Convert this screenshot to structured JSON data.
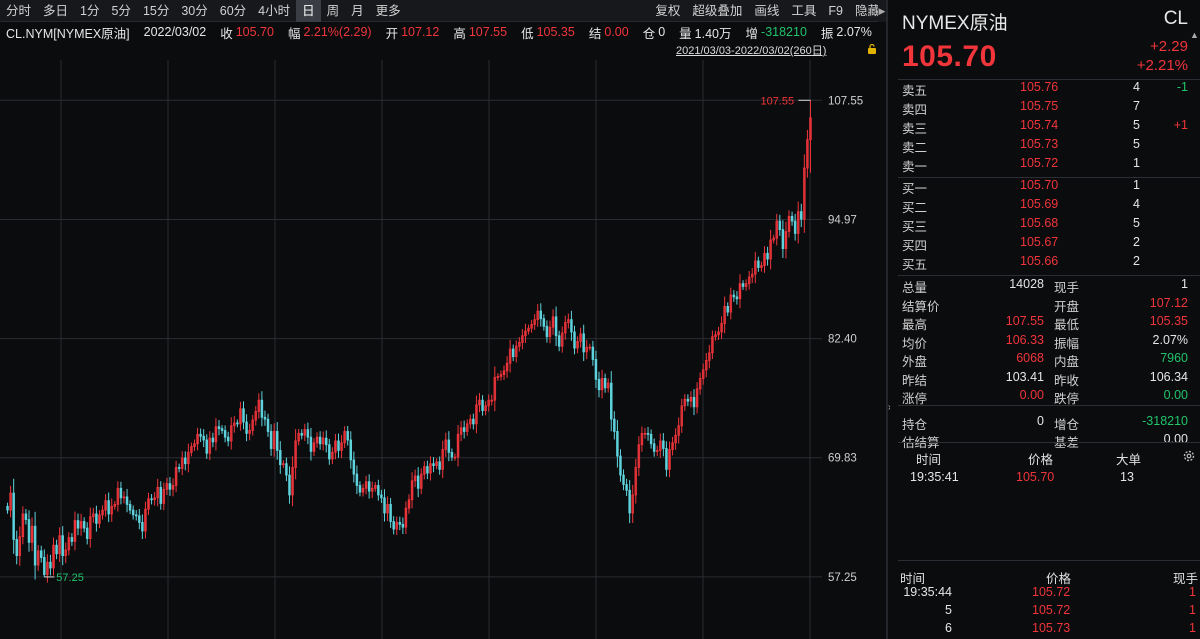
{
  "toolbar": {
    "periods": [
      "分时",
      "多日",
      "1分",
      "5分",
      "15分",
      "30分",
      "60分",
      "4小时",
      "日",
      "周",
      "月",
      "更多"
    ],
    "active_period": "日",
    "right": [
      "复权",
      "超级叠加",
      "画线",
      "工具",
      "F9",
      "隐藏"
    ]
  },
  "info": {
    "symbol": "CL.NYM[NYMEX原油]",
    "date": "2022/03/02",
    "close_label": "收",
    "close": "105.70",
    "amp_label": "幅",
    "amp": "2.21%(2.29)",
    "open_label": "开",
    "open": "107.12",
    "high_label": "高",
    "high": "107.55",
    "low_label": "低",
    "low": "105.35",
    "settle_label": "结",
    "settle": "0.00",
    "oi_label": "仓",
    "oi": "0",
    "vol_label": "量",
    "vol": "1.40万",
    "inc_label": "增",
    "inc": "-318210",
    "swing_label": "振",
    "swing": "2.07%",
    "range": "2021/03/03-2022/03/02(260日)"
  },
  "chart_data": {
    "type": "candlestick",
    "ylim": [
      50.7,
      111.8
    ],
    "yticks": [
      "107.55",
      "94.97",
      "82.40",
      "69.83",
      "57.25"
    ],
    "max_label": "107.55",
    "min_label": "57.25",
    "colors": {
      "up": "#f0353b",
      "down": "#5ed3dd"
    },
    "closes": [
      64.3,
      66.1,
      61.2,
      59.5,
      61.5,
      63.9,
      63.3,
      60.9,
      62.6,
      58.5,
      60.0,
      59.3,
      57.5,
      58.8,
      58.2,
      60.6,
      59.7,
      61.6,
      59.5,
      60.1,
      61.4,
      61.0,
      63.2,
      62.4,
      63.1,
      62.4,
      61.3,
      63.6,
      63.9,
      62.9,
      63.8,
      64.3,
      65.3,
      63.9,
      64.7,
      64.9,
      66.6,
      65.6,
      65.7,
      64.9,
      64.3,
      63.8,
      63.7,
      63.0,
      62.1,
      64.4,
      65.5,
      65.4,
      65.6,
      66.7,
      65.0,
      66.5,
      67.1,
      66.5,
      66.9,
      68.8,
      68.7,
      69.8,
      69.2,
      70.4,
      71.0,
      71.3,
      72.3,
      72.1,
      71.7,
      70.3,
      71.9,
      71.5,
      73.1,
      72.9,
      72.7,
      72.0,
      71.6,
      73.2,
      73.5,
      73.4,
      75.0,
      73.6,
      72.4,
      72.7,
      73.8,
      74.7,
      75.9,
      74.1,
      73.9,
      72.6,
      70.8,
      72.6,
      70.6,
      69.1,
      69.2,
      68.0,
      65.9,
      68.8,
      71.6,
      72.4,
      72.2,
      72.8,
      72.0,
      70.5,
      71.4,
      72.0,
      71.3,
      71.9,
      71.2,
      69.7,
      70.4,
      71.6,
      70.6,
      71.4,
      72.6,
      71.7,
      69.6,
      68.1,
      66.9,
      66.2,
      66.6,
      67.3,
      66.3,
      66.6,
      66.9,
      65.9,
      65.6,
      64.0,
      64.9,
      63.1,
      62.3,
      63.0,
      62.8,
      62.5,
      64.5,
      65.4,
      67.4,
      67.9,
      66.6,
      68.1,
      68.9,
      68.2,
      69.2,
      69.0,
      69.4,
      68.6,
      70.7,
      71.7,
      70.4,
      69.9,
      69.9,
      72.3,
      73.0,
      72.6,
      73.4,
      73.9,
      73.4,
      75.4,
      75.9,
      74.8,
      75.3,
      75.9,
      75.9,
      78.3,
      78.4,
      78.6,
      79.0,
      79.8,
      81.3,
      80.5,
      81.6,
      82.0,
      82.7,
      83.2,
      83.5,
      83.9,
      84.4,
      85.3,
      84.5,
      83.7,
      82.6,
      83.6,
      84.7,
      82.7,
      81.6,
      83.0,
      84.1,
      84.4,
      83.1,
      81.4,
      82.1,
      82.9,
      81.0,
      81.5,
      81.5,
      80.2,
      78.1,
      77.0,
      78.2,
      77.2,
      77.7,
      73.9,
      72.6,
      70.0,
      68.0,
      67.0,
      66.4,
      64.0,
      65.9,
      68.8,
      71.2,
      72.4,
      72.4,
      72.3,
      71.3,
      70.5,
      70.6,
      71.6,
      70.8,
      68.6,
      70.7,
      71.4,
      72.2,
      73.2,
      75.3,
      76.0,
      75.8,
      76.2,
      75.2,
      77.1,
      78.2,
      79.1,
      80.1,
      80.9,
      82.6,
      82.8,
      83.1,
      84.0,
      85.8,
      85.2,
      87.0,
      86.8,
      86.6,
      88.2,
      87.9,
      88.2,
      88.9,
      89.2,
      90.6,
      89.9,
      90.1,
      91.4,
      90.8,
      92.8,
      93.0,
      94.8,
      93.9,
      91.9,
      93.7,
      95.3,
      94.8,
      93.5,
      95.8,
      95.0,
      100.4,
      103.4,
      105.7
    ]
  },
  "panel": {
    "name": "NYMEX原油",
    "code": "CL",
    "price": "105.70",
    "chg": "+2.29",
    "chgpct": "+2.21%",
    "asks": [
      {
        "label": "卖五",
        "price": "105.76",
        "vol": "4",
        "chg": "-1"
      },
      {
        "label": "卖四",
        "price": "105.75",
        "vol": "7",
        "chg": ""
      },
      {
        "label": "卖三",
        "price": "105.74",
        "vol": "5",
        "chg": "+1"
      },
      {
        "label": "卖二",
        "price": "105.73",
        "vol": "5",
        "chg": ""
      },
      {
        "label": "卖一",
        "price": "105.72",
        "vol": "1",
        "chg": ""
      }
    ],
    "bids": [
      {
        "label": "买一",
        "price": "105.70",
        "vol": "1"
      },
      {
        "label": "买二",
        "price": "105.69",
        "vol": "4"
      },
      {
        "label": "买三",
        "price": "105.68",
        "vol": "5"
      },
      {
        "label": "买四",
        "price": "105.67",
        "vol": "2"
      },
      {
        "label": "买五",
        "price": "105.66",
        "vol": "2"
      }
    ],
    "stats": [
      {
        "l1": "总量",
        "v1": "14028",
        "c1": "wht",
        "l2": "现手",
        "v2": "1",
        "c2": "wht"
      },
      {
        "l1": "结算价",
        "v1": "",
        "c1": "wht",
        "l2": "开盘",
        "v2": "107.12",
        "c2": "up"
      },
      {
        "l1": "最高",
        "v1": "107.55",
        "c1": "up",
        "l2": "最低",
        "v2": "105.35",
        "c2": "up"
      },
      {
        "l1": "均价",
        "v1": "106.33",
        "c1": "up",
        "l2": "振幅",
        "v2": "2.07%",
        "c2": "wht"
      },
      {
        "l1": "外盘",
        "v1": "6068",
        "c1": "up",
        "l2": "内盘",
        "v2": "7960",
        "c2": "down"
      },
      {
        "l1": "昨结",
        "v1": "103.41",
        "c1": "wht",
        "l2": "昨收",
        "v2": "106.34",
        "c2": "wht"
      },
      {
        "l1": "涨停",
        "v1": "0.00",
        "c1": "up",
        "l2": "跌停",
        "v2": "0.00",
        "c2": "down"
      },
      {
        "l1": "持仓",
        "v1": "0",
        "c1": "wht",
        "l2": "增仓",
        "v2": "-318210",
        "c2": "down"
      },
      {
        "l1": "估结算",
        "v1": "",
        "c1": "wht",
        "l2": "基差",
        "v2": "0.00",
        "c2": "wht"
      }
    ],
    "trades_header": {
      "time": "时间",
      "price": "价格",
      "big": "大单"
    },
    "trade": {
      "time": "19:35:41",
      "price": "105.70",
      "big": "13"
    },
    "ticks_header": {
      "time": "时间",
      "price": "价格",
      "hand": "现手"
    },
    "ticks": [
      {
        "time": "19:35:44",
        "price": "105.72",
        "hand": "1"
      },
      {
        "time": "5",
        "price": "105.72",
        "hand": "1"
      },
      {
        "time": "6",
        "price": "105.73",
        "hand": "1"
      }
    ]
  }
}
